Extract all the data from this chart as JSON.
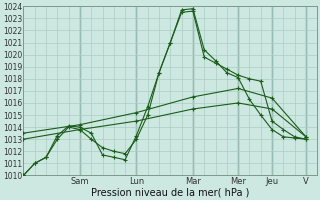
{
  "xlabel": "Pression niveau de la mer( hPa )",
  "background_color": "#cce8e0",
  "grid_color": "#aaccc4",
  "line_color": "#1a5c1a",
  "ylim": [
    1010,
    1024
  ],
  "ytick_min": 1010,
  "ytick_max": 1024,
  "xlim": [
    0,
    13
  ],
  "day_labels": [
    "Sam",
    "Lun",
    "Mar",
    "Mer",
    "Jeu",
    "V"
  ],
  "day_positions": [
    2.5,
    5.0,
    7.5,
    9.5,
    11.0,
    12.5
  ],
  "vert_line_positions": [
    2.5,
    5.0,
    7.5,
    9.5,
    11.0,
    12.5
  ],
  "lines": [
    {
      "x": [
        0,
        0.5,
        1.0,
        1.5,
        2.0,
        2.5,
        3.0,
        3.5,
        4.0,
        4.5,
        5.0,
        5.5,
        6.0,
        6.5,
        7.0,
        7.5,
        8.0,
        8.5,
        9.0,
        9.5,
        10.0,
        10.5,
        11.0,
        11.5,
        12.0,
        12.5
      ],
      "y": [
        1010.0,
        1011.0,
        1011.5,
        1013.3,
        1014.1,
        1014.0,
        1013.5,
        1011.7,
        1011.5,
        1011.3,
        1013.3,
        1015.7,
        1018.5,
        1021.0,
        1023.5,
        1023.6,
        1019.8,
        1019.3,
        1018.8,
        1018.3,
        1018.0,
        1017.8,
        1014.5,
        1013.8,
        1013.2,
        1013.0
      ]
    },
    {
      "x": [
        0,
        0.5,
        1.0,
        1.5,
        2.0,
        2.5,
        3.0,
        3.5,
        4.0,
        4.5,
        5.0,
        5.5,
        6.0,
        6.5,
        7.0,
        7.5,
        8.0,
        8.5,
        9.0,
        9.5,
        10.0,
        10.5,
        11.0,
        11.5,
        12.0,
        12.5
      ],
      "y": [
        1010.0,
        1011.0,
        1011.5,
        1013.0,
        1014.0,
        1013.8,
        1013.0,
        1012.3,
        1012.0,
        1011.8,
        1013.0,
        1015.0,
        1018.5,
        1021.0,
        1023.7,
        1023.8,
        1020.4,
        1019.5,
        1018.5,
        1018.1,
        1016.3,
        1015.0,
        1013.8,
        1013.2,
        1013.1,
        1013.0
      ]
    },
    {
      "x": [
        0,
        2.5,
        5.0,
        7.5,
        9.5,
        11.0,
        12.5
      ],
      "y": [
        1013.5,
        1014.2,
        1015.2,
        1016.5,
        1017.2,
        1016.4,
        1013.2
      ]
    },
    {
      "x": [
        0,
        2.5,
        5.0,
        7.5,
        9.5,
        11.0,
        12.5
      ],
      "y": [
        1013.0,
        1013.8,
        1014.5,
        1015.5,
        1016.0,
        1015.5,
        1013.2
      ]
    }
  ]
}
